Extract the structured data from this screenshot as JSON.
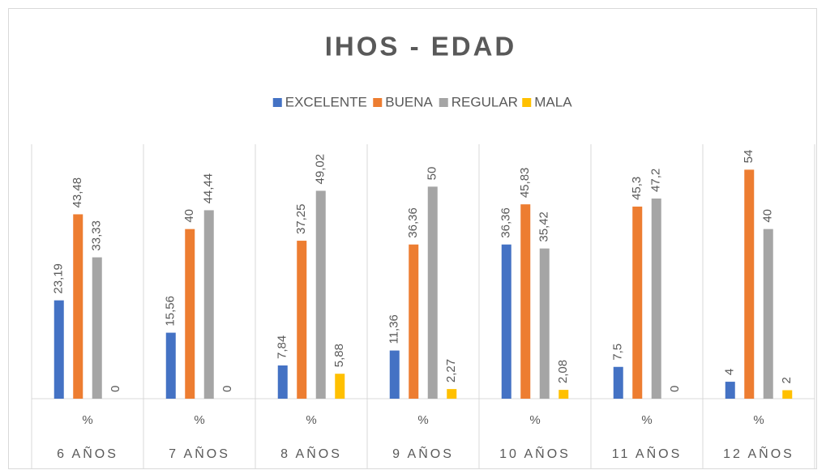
{
  "chart_data": {
    "type": "bar",
    "title": "IHOS - EDAD",
    "categories": [
      "6 AÑOS",
      "7 AÑOS",
      "8 AÑOS",
      "9 AÑOS",
      "10 AÑOS",
      "11 AÑOS",
      "12 AÑOS"
    ],
    "subcategories": [
      "%",
      "%",
      "%",
      "%",
      "%",
      "%",
      "%"
    ],
    "ylim": [
      0,
      60
    ],
    "legend": "top",
    "series": [
      {
        "name": "EXCELENTE",
        "color": "#4472c4",
        "values": [
          23.19,
          15.56,
          7.84,
          11.36,
          36.36,
          7.5,
          4
        ],
        "value_labels": [
          "23,19",
          "15,56",
          "7,84",
          "11,36",
          "36,36",
          "7,5",
          "4"
        ]
      },
      {
        "name": "BUENA",
        "color": "#ed7d31",
        "values": [
          43.48,
          40,
          37.25,
          36.36,
          45.83,
          45.3,
          54
        ],
        "value_labels": [
          "43,48",
          "40",
          "37,25",
          "36,36",
          "45,83",
          "45,3",
          "54"
        ]
      },
      {
        "name": "REGULAR",
        "color": "#a5a5a5",
        "values": [
          33.33,
          44.44,
          49.02,
          50,
          35.42,
          47.2,
          40
        ],
        "value_labels": [
          "33,33",
          "44,44",
          "49,02",
          "50",
          "35,42",
          "47,2",
          "40"
        ]
      },
      {
        "name": "MALA",
        "color": "#ffc000",
        "values": [
          0,
          0,
          5.88,
          2.27,
          2.08,
          0,
          2
        ],
        "value_labels": [
          "0",
          "0",
          "5,88",
          "2,27",
          "2,08",
          "0",
          "2"
        ]
      }
    ]
  }
}
